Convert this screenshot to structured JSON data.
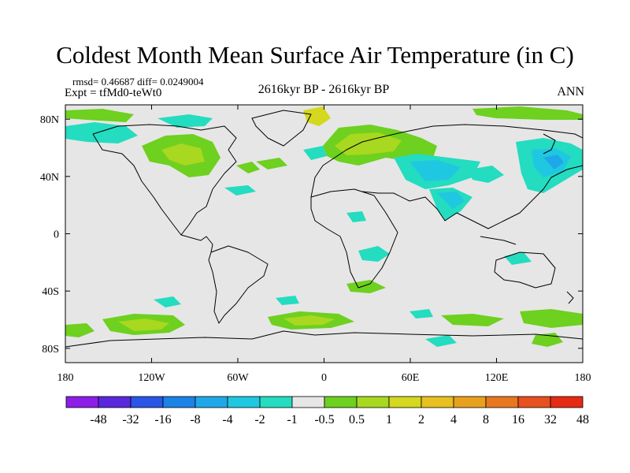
{
  "title": "Coldest Month Mean Surface Air Temperature (in C)",
  "stats": "rmsd= 0.46687 diff= 0.0249004",
  "expt": "Expt = tfMd0-teWt0",
  "period": "2616kyr BP - 2616kyr BP",
  "season": "ANN",
  "axes": {
    "lat_ticks": [
      {
        "value": 80,
        "label": "80N"
      },
      {
        "value": 40,
        "label": "40N"
      },
      {
        "value": 0,
        "label": "0"
      },
      {
        "value": -40,
        "label": "40S"
      },
      {
        "value": -80,
        "label": "80S"
      }
    ],
    "lon_ticks": [
      {
        "value": -180,
        "label": "180"
      },
      {
        "value": -120,
        "label": "120W"
      },
      {
        "value": -60,
        "label": "60W"
      },
      {
        "value": 0,
        "label": "0"
      },
      {
        "value": 60,
        "label": "60E"
      },
      {
        "value": 120,
        "label": "120E"
      },
      {
        "value": 180,
        "label": "180"
      }
    ],
    "lon_range": [
      -180,
      180
    ],
    "lat_range": [
      -90,
      90
    ]
  },
  "colorbar": {
    "colors": [
      "#8c1ee8",
      "#5a28dc",
      "#2a55e6",
      "#1b82e6",
      "#1fa8e8",
      "#1fc8e0",
      "#24dcc0",
      "#e6e6e6",
      "#6ed01f",
      "#a8d81f",
      "#d4d81f",
      "#e8c01f",
      "#e8a01f",
      "#e8781f",
      "#e8501f",
      "#e62a14"
    ],
    "labels": [
      "-48",
      "-32",
      "-16",
      "-8",
      "-4",
      "-2",
      "-1",
      "-0.5",
      "0.5",
      "1",
      "2",
      "4",
      "8",
      "16",
      "32",
      "48"
    ]
  },
  "colors": {
    "background_field": "#e6e6e6",
    "slight_warm": "#6ed01f",
    "moderate_warm": "#a8d81f",
    "warm": "#d4d81f",
    "slight_cold": "#24dcc0",
    "moderate_cold": "#1fc8e0",
    "cold": "#1fa8e8"
  }
}
